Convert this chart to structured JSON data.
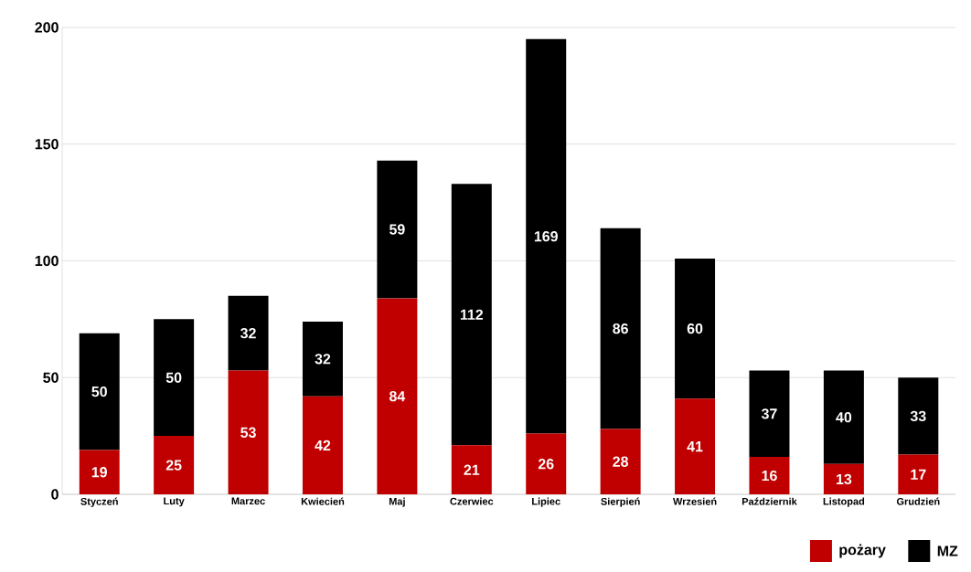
{
  "chart_data": {
    "type": "bar",
    "stacked": true,
    "categories": [
      "Styczeń",
      "Luty",
      "Marzec",
      "Kwiecień",
      "Maj",
      "Czerwiec",
      "Lipiec",
      "Sierpień",
      "Wrzesień",
      "Październik",
      "Listopad",
      "Grudzień"
    ],
    "series": [
      {
        "name": "pożary",
        "color": "#c00000",
        "values": [
          19,
          25,
          53,
          42,
          84,
          21,
          26,
          28,
          41,
          16,
          13,
          17
        ]
      },
      {
        "name": "MZ",
        "color": "#000000",
        "values": [
          50,
          50,
          32,
          32,
          59,
          112,
          169,
          86,
          60,
          37,
          40,
          33
        ]
      }
    ],
    "ylim": [
      0,
      200
    ],
    "yticks": [
      0,
      50,
      100,
      150,
      200
    ],
    "grid": "y",
    "data_labels": true,
    "legend": "bottom right"
  }
}
